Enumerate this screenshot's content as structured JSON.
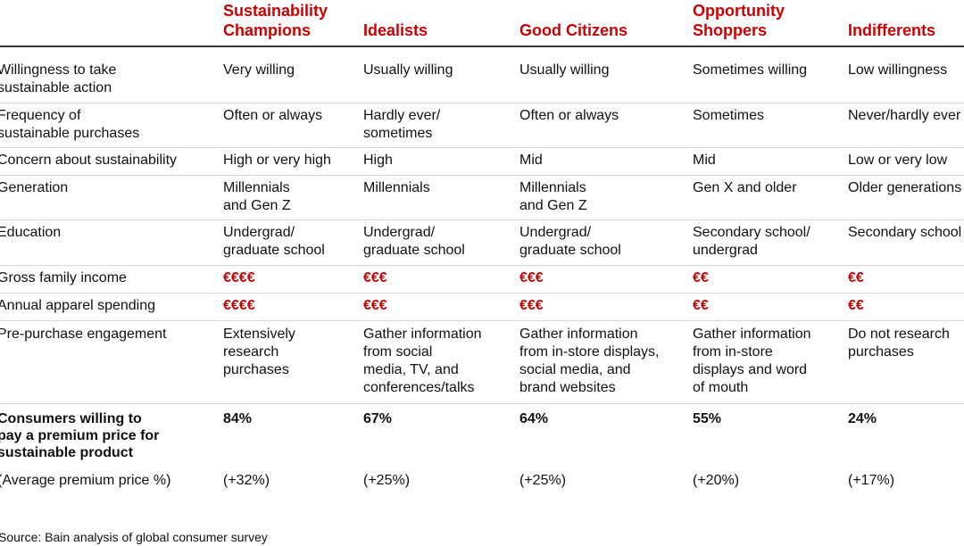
{
  "table": {
    "columns": [
      "Sustainability\nChampions",
      "Idealists",
      "Good Citizens",
      "Opportunity\nShoppers",
      "Indifferents"
    ],
    "rows": [
      {
        "label": "Willingness to take\nsustainable action",
        "cells": [
          "Very willing",
          "Usually willing",
          "Usually willing",
          "Sometimes willing",
          "Low willingness"
        ]
      },
      {
        "label": "Frequency of\nsustainable purchases",
        "cells": [
          "Often or always",
          "Hardly ever/\nsometimes",
          "Often or always",
          "Sometimes",
          "Never/hardly ever"
        ]
      },
      {
        "label": "Concern about sustainability",
        "cells": [
          "High or very high",
          "High",
          "Mid",
          "Mid",
          "Low or very low"
        ]
      },
      {
        "label": "Generation",
        "cells": [
          "Millennials\nand Gen Z",
          "Millennials",
          "Millennials\nand Gen Z",
          "Gen X and older",
          "Older generations"
        ]
      },
      {
        "label": "Education",
        "cells": [
          "Undergrad/\ngraduate school",
          "Undergrad/\ngraduate school",
          "Undergrad/\ngraduate school",
          "Secondary school/\nundergrad",
          "Secondary school"
        ]
      },
      {
        "label": "Gross family income",
        "cells": [
          "€€€€",
          "€€€",
          "€€€",
          "€€",
          "€€"
        ]
      },
      {
        "label": "Annual apparel spending",
        "cells": [
          "€€€€",
          "€€€",
          "€€€",
          "€€",
          "€€"
        ]
      },
      {
        "label": "Pre-purchase engagement",
        "cells": [
          "Extensively\nresearch\npurchases",
          "Gather information\nfrom social\nmedia, TV, and\nconferences/talks",
          "Gather information\nfrom in-store displays,\nsocial media, and\nbrand websites",
          "Gather information\nfrom in-store\ndisplays and word\nof mouth",
          "Do not research\npurchases"
        ]
      },
      {
        "label": "Consumers willing to\npay a premium price for\nsustainable product",
        "cells": [
          "84%",
          "67%",
          "64%",
          "55%",
          "24%"
        ]
      },
      {
        "label": "(Average premium price %)",
        "cells": [
          "(+32%)",
          "(+25%)",
          "(+25%)",
          "(+20%)",
          "(+17%)"
        ]
      }
    ],
    "source": "Source: Bain analysis of global consumer survey"
  }
}
